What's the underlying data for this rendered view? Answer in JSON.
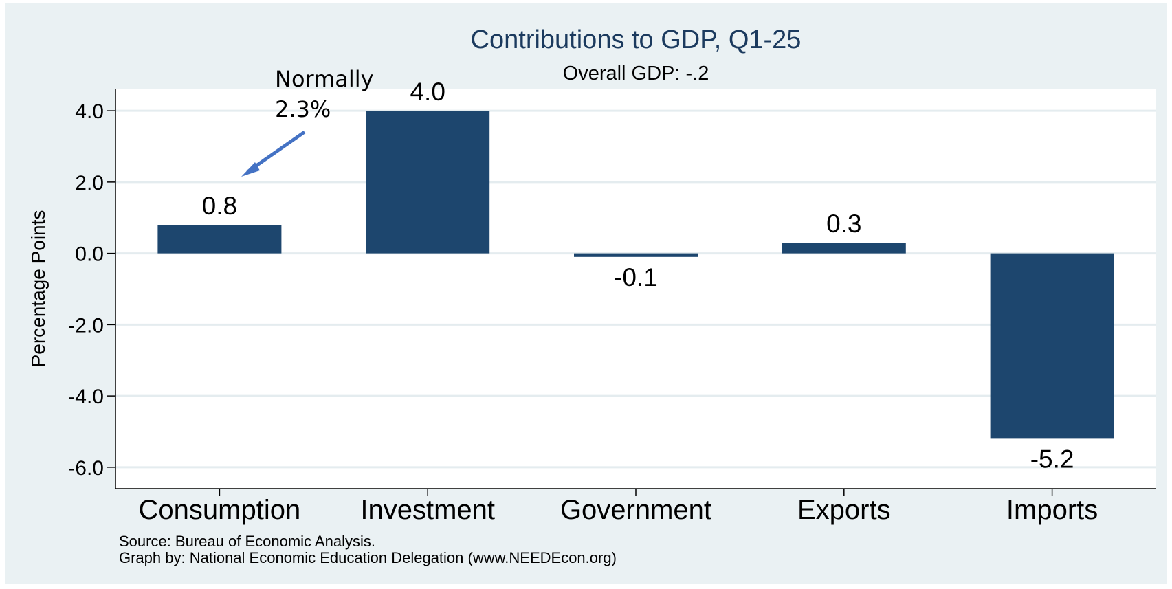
{
  "colors": {
    "bar": "#1d466e",
    "background": "#eaf1f3",
    "plot_bg": "#ffffff",
    "grid": "#e4ecef",
    "title": "#1b3a5e",
    "arrow": "#4472c4"
  },
  "chart_data": {
    "type": "bar",
    "title": "Contributions to GDP, Q1-25",
    "subtitle": "Overall GDP: -.2",
    "xlabel": "",
    "ylabel": "Percentage Points",
    "categories": [
      "Consumption",
      "Investment",
      "Government",
      "Exports",
      "Imports"
    ],
    "values": [
      0.8,
      4.0,
      -0.1,
      0.3,
      -5.2
    ],
    "value_labels": [
      "0.8",
      "4.0",
      "-0.1",
      "0.3",
      "-5.2"
    ],
    "yticks": [
      4.0,
      2.0,
      0.0,
      -2.0,
      -4.0,
      -6.0
    ],
    "ytick_labels": [
      "4.0",
      "2.0",
      "0.0",
      "-2.0",
      "-4.0",
      "-6.0"
    ],
    "ylim": [
      -6.6,
      4.6
    ],
    "grid": true,
    "annotation": {
      "lines": [
        "Normally",
        "2.3%"
      ],
      "target_category": "Consumption"
    },
    "notes": [
      "Source: Bureau of Economic Analysis.",
      "Graph by: National Economic Education Delegation (www.NEEDEcon.org)"
    ]
  }
}
